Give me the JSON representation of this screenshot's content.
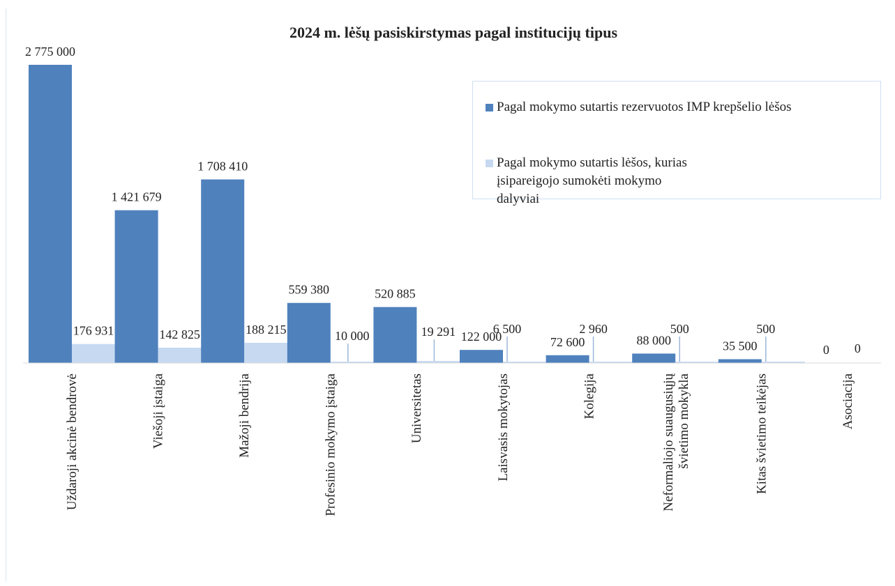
{
  "chart_data": {
    "type": "bar",
    "title": "2024 m. lėšų pasiskirstymas pagal institucijų tipus",
    "xlabel": "",
    "ylabel": "",
    "ylim": [
      0,
      2800000
    ],
    "grid": false,
    "legend_position": "top-right",
    "categories": [
      "Uždaroji akcinė bendrovė",
      "Viešoji įstaiga",
      "Mažoji bendrija",
      "Profesinio mokymo įstaiga",
      "Universitetas",
      "Laisvasis mokytojas",
      "Kolegija",
      "Neformaliojo suaugusiųjų\nšvietimo mokykla",
      "Kitas švietimo teikėjas",
      "Asociacija"
    ],
    "series": [
      {
        "name": "Pagal mokymo sutartis rezervuotos IMP krepšelio lėšos",
        "color": "#4f81bd",
        "values": [
          2775000,
          1421679,
          1708410,
          559380,
          520885,
          122000,
          72600,
          88000,
          35500,
          0
        ],
        "labels": [
          "2 775 000",
          "1 421 679",
          "1 708 410",
          "559 380",
          "520 885",
          "122 000",
          "72 600",
          "88 000",
          "35 500",
          "0"
        ]
      },
      {
        "name": "Pagal mokymo sutartis lėšos, kurias įsipareigojo sumokėti mokymo dalyviai",
        "color": "#c6d9f1",
        "values": [
          176931,
          142825,
          188215,
          10000,
          19291,
          6500,
          2960,
          500,
          500,
          0
        ],
        "labels": [
          "176 931",
          "142 825",
          "188 215",
          "10 000",
          "19 291",
          "6 500",
          "2 960",
          "500",
          "500",
          "0"
        ]
      }
    ]
  }
}
